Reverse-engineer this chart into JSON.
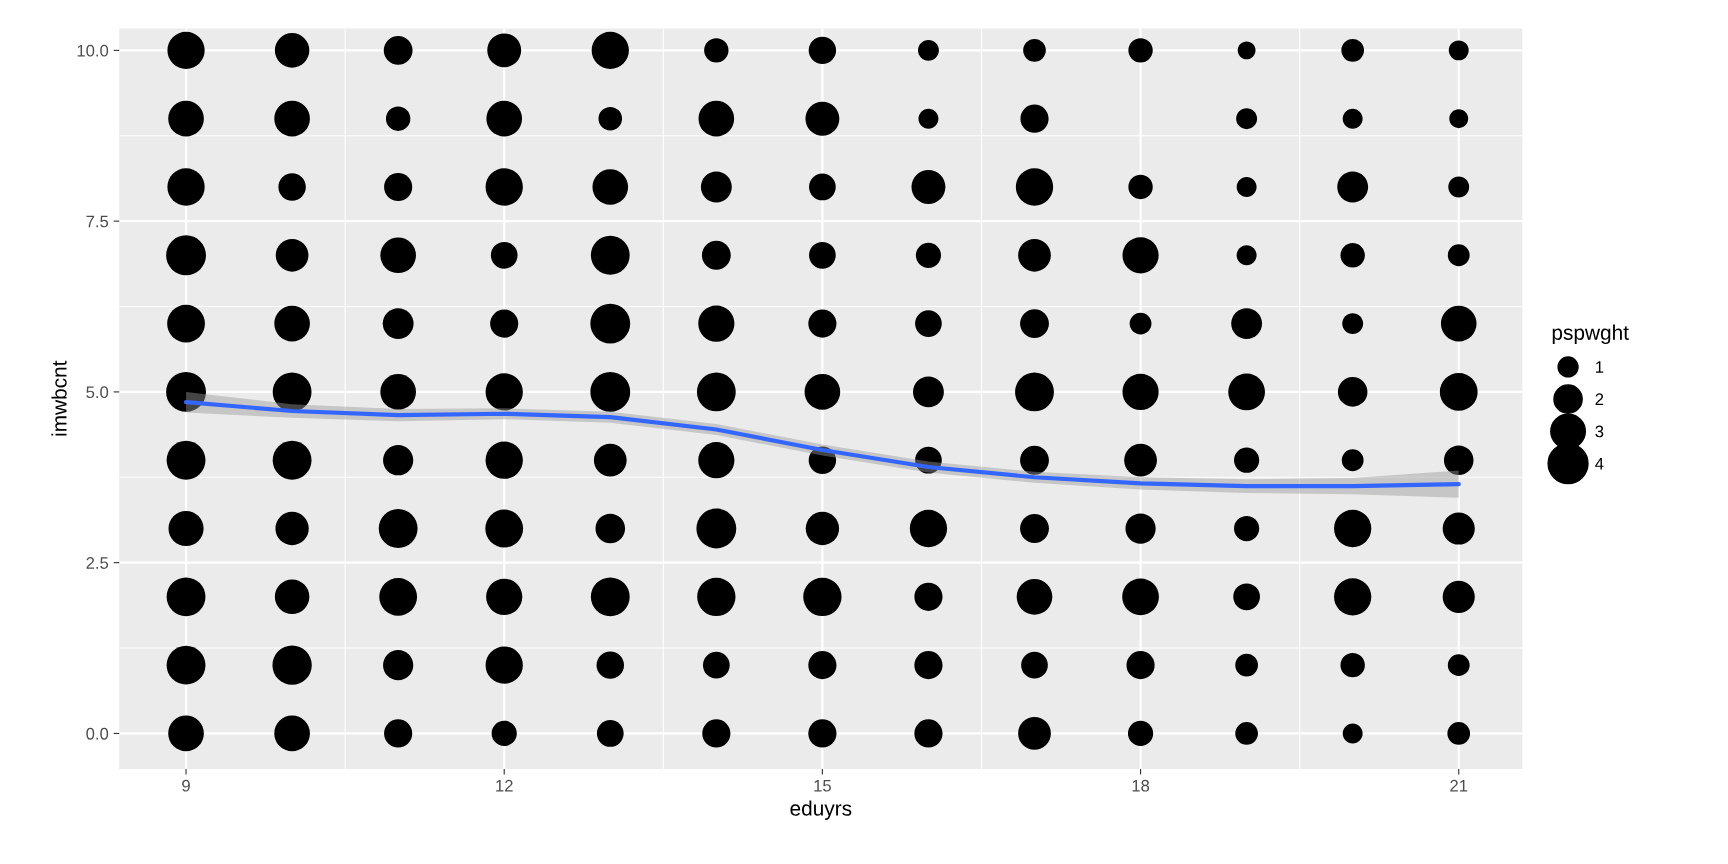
{
  "chart_data": {
    "type": "bubble",
    "xlabel": "eduyrs",
    "ylabel": "imwbcnt",
    "legend_title": "pspwght",
    "xlim": [
      8.37,
      21.6
    ],
    "xticks": [
      9,
      12,
      15,
      18,
      21
    ],
    "ylim": [
      -0.52,
      10.32
    ],
    "yticks": [
      {
        "value": 0,
        "label": "0.0"
      },
      {
        "value": 2.5,
        "label": "2.5"
      },
      {
        "value": 5,
        "label": "5.0"
      },
      {
        "value": 7.5,
        "label": "7.5"
      },
      {
        "value": 10,
        "label": "10.0"
      }
    ],
    "grid": true,
    "size_legend": [
      1,
      2,
      3,
      4
    ],
    "series": [
      {
        "color": "#000000",
        "x": [
          9,
          10,
          11,
          12,
          13,
          14,
          15,
          16,
          17,
          18,
          19,
          20,
          21
        ],
        "values": [
          10,
          10,
          10,
          10,
          10,
          10,
          10,
          10,
          10,
          10,
          10,
          10,
          10
        ],
        "sizes": [
          3.5,
          3.0,
          2.1,
          2.9,
          3.5,
          1.5,
          1.9,
          1.1,
          1.3,
          1.5,
          0.8,
          1.3,
          1.0
        ]
      },
      {
        "color": "#000000",
        "x": [
          9,
          10,
          11,
          12,
          13,
          14,
          15,
          16,
          17,
          19,
          20,
          21
        ],
        "values": [
          9,
          9,
          9,
          9,
          9,
          9,
          9,
          9,
          9,
          9,
          9,
          9
        ],
        "sizes": [
          3.2,
          3.2,
          1.5,
          3.2,
          1.4,
          3.2,
          2.9,
          1.0,
          2.0,
          1.1,
          1.0,
          0.9
        ]
      },
      {
        "color": "#000000",
        "x": [
          9,
          10,
          11,
          12,
          13,
          14,
          15,
          16,
          17,
          18,
          19,
          20,
          21
        ],
        "values": [
          8,
          8,
          8,
          8,
          8,
          8,
          8,
          8,
          8,
          8,
          8,
          8,
          8
        ],
        "sizes": [
          3.5,
          1.9,
          2.0,
          3.5,
          3.2,
          2.4,
          1.8,
          2.9,
          3.5,
          1.5,
          1.0,
          2.4,
          1.1
        ]
      },
      {
        "color": "#000000",
        "x": [
          9,
          10,
          11,
          12,
          13,
          14,
          15,
          16,
          17,
          18,
          19,
          20,
          21
        ],
        "values": [
          7,
          7,
          7,
          7,
          7,
          7,
          7,
          7,
          7,
          7,
          7,
          7,
          7
        ],
        "sizes": [
          4.0,
          2.7,
          3.2,
          1.8,
          3.8,
          2.1,
          1.8,
          1.6,
          2.7,
          3.3,
          1.0,
          1.5,
          1.2
        ]
      },
      {
        "color": "#000000",
        "x": [
          9,
          10,
          11,
          12,
          13,
          14,
          15,
          16,
          17,
          18,
          19,
          20,
          21
        ],
        "values": [
          6,
          6,
          6,
          6,
          6,
          6,
          6,
          6,
          6,
          6,
          6,
          6,
          6
        ],
        "sizes": [
          3.6,
          3.2,
          2.4,
          2.0,
          4.0,
          3.3,
          2.0,
          1.8,
          2.1,
          1.2,
          2.4,
          1.1,
          3.2
        ]
      },
      {
        "color": "#000000",
        "x": [
          9,
          10,
          11,
          12,
          13,
          14,
          15,
          16,
          17,
          18,
          19,
          20,
          21
        ],
        "values": [
          5,
          5,
          5,
          5,
          5,
          5,
          5,
          5,
          5,
          5,
          5,
          5,
          5
        ],
        "sizes": [
          4.0,
          3.8,
          3.2,
          3.5,
          4.0,
          3.8,
          3.2,
          2.4,
          3.8,
          3.3,
          3.4,
          2.2,
          3.6
        ]
      },
      {
        "color": "#000000",
        "x": [
          9,
          10,
          11,
          12,
          13,
          14,
          15,
          16,
          17,
          18,
          19,
          20,
          21
        ],
        "values": [
          4,
          4,
          4,
          4,
          4,
          4,
          4,
          4,
          4,
          4,
          4,
          4,
          4
        ],
        "sizes": [
          3.8,
          3.8,
          2.3,
          3.5,
          2.7,
          3.3,
          1.9,
          1.8,
          2.1,
          2.7,
          1.6,
          1.2,
          2.2
        ]
      },
      {
        "color": "#000000",
        "x": [
          9,
          10,
          11,
          12,
          13,
          14,
          15,
          16,
          17,
          18,
          19,
          20,
          21
        ],
        "values": [
          3,
          3,
          3,
          3,
          3,
          3,
          3,
          3,
          3,
          3,
          3,
          3,
          3
        ],
        "sizes": [
          3.1,
          2.8,
          3.8,
          3.6,
          2.2,
          4.0,
          2.8,
          3.5,
          2.1,
          2.3,
          1.6,
          3.5,
          2.6
        ]
      },
      {
        "color": "#000000",
        "x": [
          9,
          10,
          11,
          12,
          13,
          14,
          15,
          16,
          17,
          18,
          19,
          20,
          21
        ],
        "values": [
          2,
          2,
          2,
          2,
          2,
          2,
          2,
          2,
          2,
          2,
          2,
          2,
          2
        ],
        "sizes": [
          3.8,
          3.0,
          3.6,
          3.3,
          3.8,
          3.7,
          3.7,
          2.0,
          3.2,
          3.4,
          1.8,
          3.5,
          2.6
        ]
      },
      {
        "color": "#000000",
        "x": [
          9,
          10,
          11,
          12,
          13,
          14,
          15,
          16,
          17,
          18,
          19,
          20,
          21
        ],
        "values": [
          1,
          1,
          1,
          1,
          1,
          1,
          1,
          1,
          1,
          1,
          1,
          1,
          1
        ],
        "sizes": [
          3.8,
          3.9,
          2.3,
          3.5,
          1.9,
          1.8,
          2.0,
          2.0,
          1.8,
          2.0,
          1.3,
          1.5,
          1.2
        ]
      },
      {
        "color": "#000000",
        "x": [
          9,
          10,
          11,
          12,
          13,
          14,
          15,
          16,
          17,
          18,
          19,
          20,
          21
        ],
        "values": [
          0,
          0,
          0,
          0,
          0,
          0,
          0,
          0,
          0,
          0,
          0,
          0,
          0
        ],
        "sizes": [
          3.2,
          3.2,
          2.0,
          1.6,
          1.8,
          2.0,
          2.0,
          2.0,
          2.7,
          1.6,
          1.3,
          1.0,
          1.3
        ]
      },
      {
        "type": "line",
        "color": "#3366ff",
        "x": [
          9,
          10,
          11,
          12,
          13,
          14,
          15,
          16,
          17,
          18,
          19,
          20,
          21
        ],
        "values": [
          4.85,
          4.72,
          4.66,
          4.68,
          4.63,
          4.45,
          4.15,
          3.9,
          3.75,
          3.66,
          3.62,
          3.62,
          3.65
        ],
        "lower": [
          4.7,
          4.62,
          4.57,
          4.6,
          4.55,
          4.37,
          4.07,
          3.82,
          3.67,
          3.57,
          3.52,
          3.5,
          3.45
        ],
        "upper": [
          5.0,
          4.82,
          4.75,
          4.76,
          4.71,
          4.53,
          4.23,
          3.98,
          3.83,
          3.75,
          3.72,
          3.74,
          3.85
        ]
      }
    ]
  }
}
